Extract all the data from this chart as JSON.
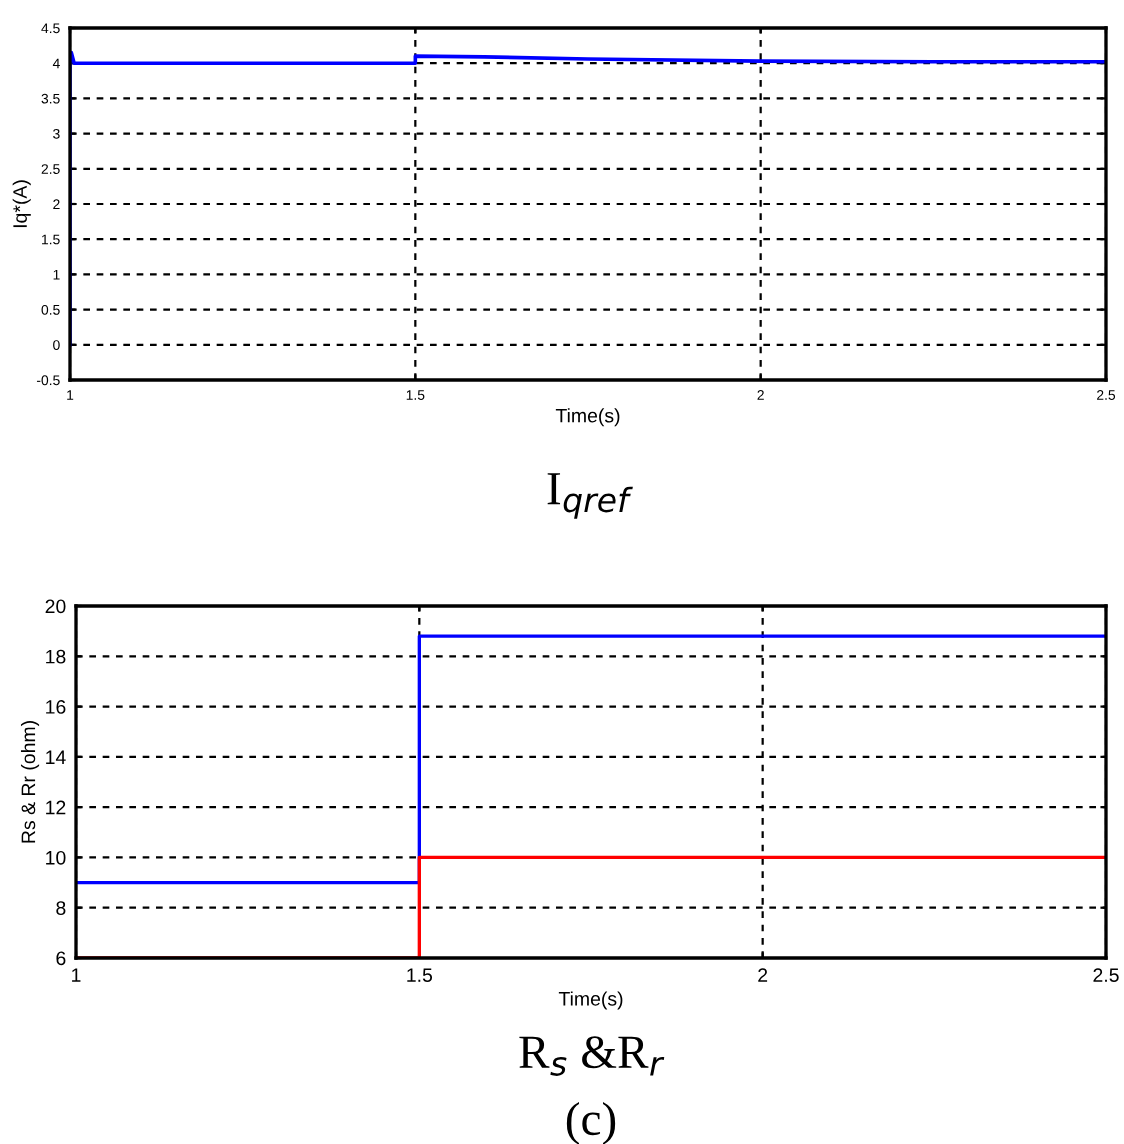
{
  "chart_data": [
    {
      "type": "line",
      "title": "I$_{qref}$",
      "xlabel": "Time(s)",
      "ylabel": "Iq*(A)",
      "series": [
        {
          "color": "#0000ff",
          "x": [
            1.0,
            1.0,
            1.002,
            1.006,
            1.5,
            1.5,
            1.6,
            1.75,
            2.0,
            2.25,
            2.5
          ],
          "values": [
            0.0,
            4.15,
            4.15,
            4.0,
            4.0,
            4.1,
            4.09,
            4.06,
            4.03,
            4.02,
            4.02
          ]
        }
      ],
      "xlim": [
        1,
        2.5
      ],
      "xticks": [
        1,
        1.5,
        2,
        2.5
      ],
      "ylim": [
        -0.5,
        4.5
      ],
      "yticks": [
        -0.5,
        0,
        0.5,
        1,
        1.5,
        2,
        2.5,
        3,
        3.5,
        4,
        4.5
      ],
      "grid": true,
      "line_style": "solid"
    },
    {
      "type": "step",
      "title": "R$_{s}$ &R$_{r}$",
      "xlabel": "Time(s)",
      "ylabel": "Rs & Rr (ohm)",
      "annotations": [
        "(c)"
      ],
      "series": [
        {
          "color": "#0000ff",
          "x": [
            1,
            1.5,
            2.5
          ],
          "values": [
            9,
            18.8,
            18.8
          ]
        },
        {
          "color": "#ff0000",
          "x": [
            1,
            1.5,
            2.5
          ],
          "values": [
            6,
            10,
            10
          ]
        }
      ],
      "xlim": [
        1,
        2.5
      ],
      "xticks": [
        1,
        1.5,
        2,
        2.5
      ],
      "ylim": [
        6,
        20
      ],
      "yticks": [
        6,
        8,
        10,
        12,
        14,
        16,
        18,
        20
      ],
      "grid": true,
      "line_style": "solid"
    }
  ]
}
